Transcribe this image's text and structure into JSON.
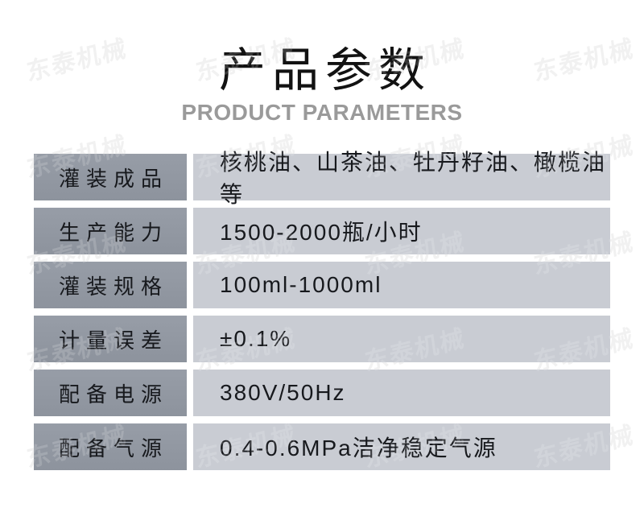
{
  "page": {
    "title": "产品参数",
    "subtitle": "PRODUCT PARAMETERS"
  },
  "watermark": {
    "text": "东泰机械"
  },
  "table": {
    "rows": [
      {
        "label": "灌装成品",
        "value": "核桃油、山茶油、牡丹籽油、橄榄油等"
      },
      {
        "label": "生产能力",
        "value": "1500-2000瓶/小时"
      },
      {
        "label": "灌装规格",
        "value": "100ml-1000ml"
      },
      {
        "label": "计量误差",
        "value": "±0.1%"
      },
      {
        "label": "配备电源",
        "value": "380V/50Hz"
      },
      {
        "label": "配备气源",
        "value": "0.4-0.6MPa洁净稳定气源"
      }
    ]
  },
  "colors": {
    "background": "#ffffff",
    "label_cell_top": "#979da7",
    "label_cell_bottom": "#8d939d",
    "value_cell": "#c9ccd3",
    "cell_text": "#17191d",
    "title_text": "#121212",
    "subtitle_text": "#9a9a9a",
    "watermark_under": "#efefef"
  }
}
